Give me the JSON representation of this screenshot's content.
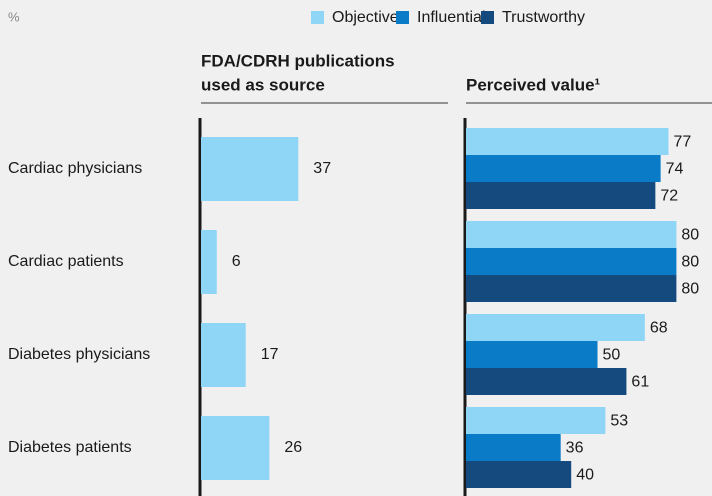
{
  "unit": "%",
  "chart_data": [
    {
      "type": "bar",
      "orientation": "horizontal",
      "title": [
        "FDA/CDRH publications",
        "used as source"
      ],
      "categories": [
        "Cardiac physicians",
        "Cardiac patients",
        "Diabetes physicians",
        "Diabetes patients"
      ],
      "values": [
        37,
        6,
        17,
        26
      ],
      "color": "#8fd6f6"
    },
    {
      "type": "grouped_bar",
      "orientation": "horizontal",
      "title": "Perceived value¹",
      "legend": "top",
      "series": [
        {
          "name": "Objective",
          "color": "#8fd6f6",
          "values": [
            77,
            80,
            68,
            53
          ]
        },
        {
          "name": "Influential",
          "color": "#0a7cc7",
          "values": [
            74,
            80,
            50,
            36
          ]
        },
        {
          "name": "Trustworthy",
          "color": "#154a7e",
          "values": [
            72,
            80,
            61,
            40
          ]
        }
      ]
    }
  ]
}
